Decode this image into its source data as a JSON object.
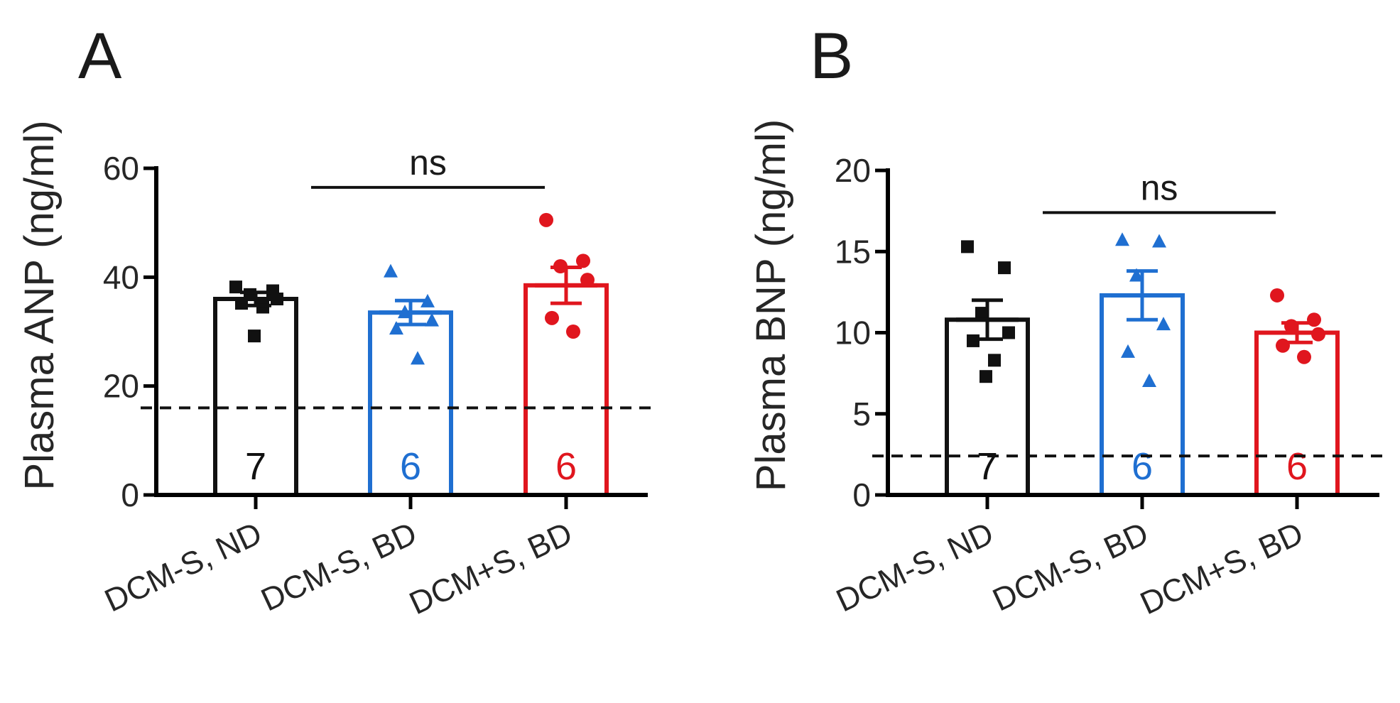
{
  "colors": {
    "black": "#111111",
    "blue": "#1f6fd1",
    "red": "#e0161e"
  },
  "chart_data": [
    {
      "type": "bar",
      "panel": "A",
      "ylabel": "Plasma ANP (ng/ml)",
      "ylim": [
        0,
        60
      ],
      "yticks": [
        "0",
        "20",
        "40",
        "60"
      ],
      "categories": [
        "DCM-S, ND",
        "DCM-S, BD",
        "DCM+S, BD"
      ],
      "values": [
        36,
        33.5,
        38.5
      ],
      "sem": [
        1.2,
        2.2,
        3.3
      ],
      "n_labels": [
        "7",
        "6",
        "6"
      ],
      "series_colors": [
        "black",
        "blue",
        "red"
      ],
      "markers": [
        "square",
        "triangle",
        "circle"
      ],
      "points": [
        [
          38.2,
          37.5,
          36.8,
          36.0,
          35.2,
          34.5,
          29.2
        ],
        [
          41.0,
          35.5,
          33.5,
          32.0,
          30.5,
          25.0
        ],
        [
          50.5,
          43.0,
          42.0,
          39.5,
          32.5,
          30.0
        ]
      ],
      "reference_line": 16,
      "significance": {
        "label": "ns",
        "from": 1,
        "to": 2,
        "y": 56.5
      }
    },
    {
      "type": "bar",
      "panel": "B",
      "ylabel": "Plasma BNP (ng/ml)",
      "ylim": [
        0,
        20
      ],
      "yticks": [
        "0",
        "5",
        "10",
        "15",
        "20"
      ],
      "categories": [
        "DCM-S, ND",
        "DCM-S, BD",
        "DCM+S, BD"
      ],
      "values": [
        10.8,
        12.3,
        10.0
      ],
      "sem": [
        1.2,
        1.5,
        0.6
      ],
      "n_labels": [
        "7",
        "6",
        "6"
      ],
      "series_colors": [
        "black",
        "blue",
        "red"
      ],
      "markers": [
        "square",
        "triangle",
        "circle"
      ],
      "points": [
        [
          15.3,
          14.0,
          11.2,
          10.0,
          9.5,
          8.3,
          7.3
        ],
        [
          15.7,
          15.6,
          13.5,
          10.5,
          8.8,
          7.0
        ],
        [
          12.3,
          10.8,
          10.4,
          9.9,
          9.2,
          8.5
        ]
      ],
      "reference_line": 2.4,
      "significance": {
        "label": "ns",
        "from": 1,
        "to": 2,
        "y": 17.4
      }
    }
  ]
}
